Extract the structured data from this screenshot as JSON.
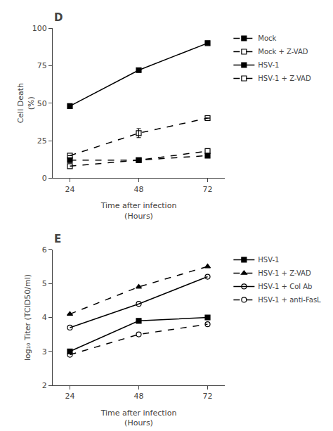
{
  "chart_data": [
    {
      "type": "line",
      "title": "D",
      "x": [
        24,
        48,
        72
      ],
      "series": [
        {
          "name": "Mock",
          "color": "black",
          "values": [
            12,
            12,
            15
          ],
          "line_style": "dashed",
          "marker": "square"
        },
        {
          "name": "Mock + Z-VAD",
          "color": "black",
          "values": [
            15,
            30,
            40
          ],
          "errors": [
            0,
            3,
            0
          ],
          "line_style": "dashed",
          "marker": "square-open"
        },
        {
          "name": "HSV-1",
          "color": "black",
          "values": [
            48,
            72,
            90
          ],
          "line_style": "solid",
          "marker": "square"
        },
        {
          "name": "HSV-1 + Z-VAD",
          "color": "black",
          "values": [
            8,
            12,
            18
          ],
          "line_style": "dashed",
          "marker": "square-open"
        }
      ],
      "x_label": "Time after infection\n(Hours)",
      "y_label": "Cell Death\n(%)",
      "xlim": [
        18,
        78
      ],
      "xticks": [
        24,
        48,
        72
      ],
      "ylim": [
        0,
        100
      ],
      "yticks": [
        0,
        25,
        50,
        75,
        100
      ],
      "grid": false,
      "legend": "right"
    },
    {
      "type": "line",
      "title": "E",
      "x": [
        24,
        48,
        72
      ],
      "series": [
        {
          "name": "HSV-1",
          "color": "black",
          "values": [
            3.0,
            3.9,
            4.0
          ],
          "line_style": "solid",
          "marker": "square"
        },
        {
          "name": "HSV-1 + Z-VAD",
          "color": "black",
          "values": [
            4.1,
            4.9,
            5.5
          ],
          "line_style": "dashed",
          "marker": "triangle-up"
        },
        {
          "name": "HSV-1 + Col Ab",
          "color": "black",
          "values": [
            3.7,
            4.4,
            5.2
          ],
          "line_style": "solid",
          "marker": "circle-open"
        },
        {
          "name": "HSV-1 + anti-FasL",
          "color": "black",
          "values": [
            2.9,
            3.5,
            3.8
          ],
          "line_style": "dashed",
          "marker": "circle-open"
        }
      ],
      "x_label": "Time after infection\n(Hours)",
      "y_label": "log₁₀ Titer (TCID50/ml)",
      "xlim": [
        18,
        78
      ],
      "xticks": [
        24,
        48,
        72
      ],
      "ylim": [
        2,
        6
      ],
      "yticks": [
        2,
        3,
        4,
        5,
        6
      ],
      "grid": false,
      "legend": "right"
    }
  ]
}
